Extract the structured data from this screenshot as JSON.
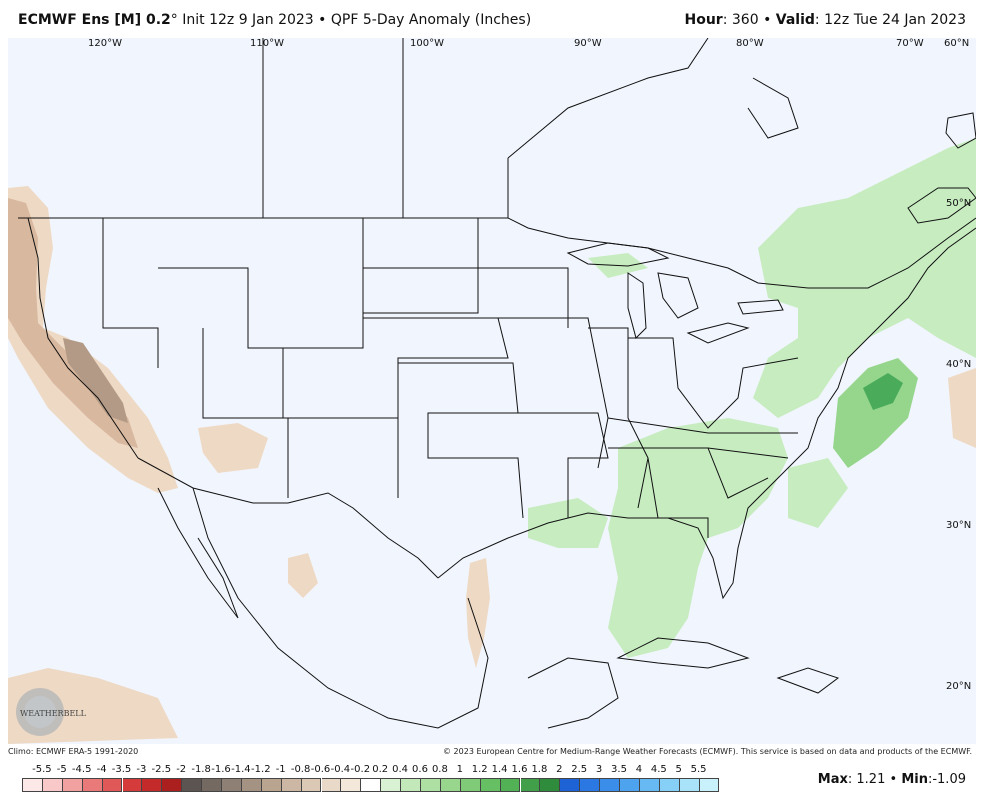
{
  "header": {
    "model": "ECMWF Ens [M] 0.2",
    "degree": "°",
    "init_text": "Init 12z 9 Jan 2023",
    "bullet": "•",
    "product": "QPF 5-Day Anomaly (Inches)",
    "hour_label": "Hour",
    "hour_value": ": 360",
    "valid_label": "Valid",
    "valid_value": ": 12z Tue 24 Jan 2023"
  },
  "map": {
    "longitude_labels": [
      "120°W",
      "110°W",
      "100°W",
      "90°W",
      "80°W",
      "70°W",
      "60°N"
    ],
    "latitude_labels": [
      "50°N",
      "40°N",
      "30°N",
      "20°N"
    ],
    "logo_text": "WEATHERBELL",
    "colors": {
      "ocean": "#f1f5fd",
      "dry_light": "#eed9c4",
      "dry_medium": "#d8b89e",
      "dry_dark": "#b39a86",
      "wet_light": "#c6ecc0",
      "wet_medium": "#95d68c",
      "wet_dark": "#4aab5b",
      "border": "#111111"
    }
  },
  "credits": {
    "climo": "Climo: ECMWF ERA-5 1991-2020",
    "copyright": "© 2023 European Centre for Medium-Range Weather Forecasts (ECMWF). This service is based on data and products of the ECMWF."
  },
  "colorbar": {
    "labels": [
      "-5.5",
      "-5",
      "-4.5",
      "-4",
      "-3.5",
      "-3",
      "-2.5",
      "-2",
      "-1.8",
      "-1.6",
      "-1.4",
      "-1.2",
      "-1",
      "-0.8",
      "-0.6",
      "-0.4",
      "-0.2",
      "0.2",
      "0.4",
      "0.6",
      "0.8",
      "1",
      "1.2",
      "1.4",
      "1.6",
      "1.8",
      "2",
      "2.5",
      "3",
      "3.5",
      "4",
      "4.5",
      "5",
      "5.5"
    ],
    "colors": [
      "#fde8e8",
      "#f9c9c9",
      "#f2a1a1",
      "#ea7a7a",
      "#e05858",
      "#d63b3b",
      "#c52a2a",
      "#ab1f1f",
      "#5c5450",
      "#756a62",
      "#8f8075",
      "#a49282",
      "#b9a490",
      "#cbb7a3",
      "#dbc9b6",
      "#e8d9c8",
      "#f3e8da",
      "#ffffff",
      "#d9f2d3",
      "#c3e9ba",
      "#aee0a3",
      "#97d68c",
      "#7fcb77",
      "#67bf64",
      "#52b055",
      "#409f48",
      "#2f8c3d",
      "#1e63d6",
      "#2b78e2",
      "#3a8de9",
      "#4ea3ef",
      "#67b9f3",
      "#86cff6",
      "#a9e3f9",
      "#c9f1fc"
    ]
  },
  "stats": {
    "max_label": "Max",
    "max_value": ": 1.21",
    "min_label": "Min",
    "min_value": ":-1.09",
    "bullet": "•"
  }
}
